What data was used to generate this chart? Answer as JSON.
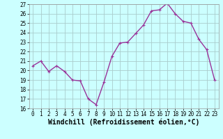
{
  "x": [
    0,
    1,
    2,
    3,
    4,
    5,
    6,
    7,
    8,
    9,
    10,
    11,
    12,
    13,
    14,
    15,
    16,
    17,
    18,
    19,
    20,
    21,
    22,
    23
  ],
  "y": [
    20.5,
    21.0,
    19.9,
    20.5,
    19.9,
    19.0,
    18.9,
    17.0,
    16.4,
    18.8,
    21.5,
    22.9,
    23.0,
    23.9,
    24.8,
    26.3,
    26.4,
    27.1,
    26.0,
    25.2,
    25.0,
    23.3,
    22.2,
    19.0
  ],
  "line_color": "#993399",
  "marker": "+",
  "marker_size": 3,
  "marker_linewidth": 0.8,
  "bg_color": "#ccffff",
  "grid_color": "#aacccc",
  "xlabel": "Windchill (Refroidissement éolien,°C)",
  "ylim": [
    16,
    27
  ],
  "xlim": [
    -0.5,
    23.5
  ],
  "yticks": [
    16,
    17,
    18,
    19,
    20,
    21,
    22,
    23,
    24,
    25,
    26,
    27
  ],
  "xticks": [
    0,
    1,
    2,
    3,
    4,
    5,
    6,
    7,
    8,
    9,
    10,
    11,
    12,
    13,
    14,
    15,
    16,
    17,
    18,
    19,
    20,
    21,
    22,
    23
  ],
  "tick_label_fontsize": 5.5,
  "xlabel_fontsize": 7.0,
  "linewidth": 1.0
}
